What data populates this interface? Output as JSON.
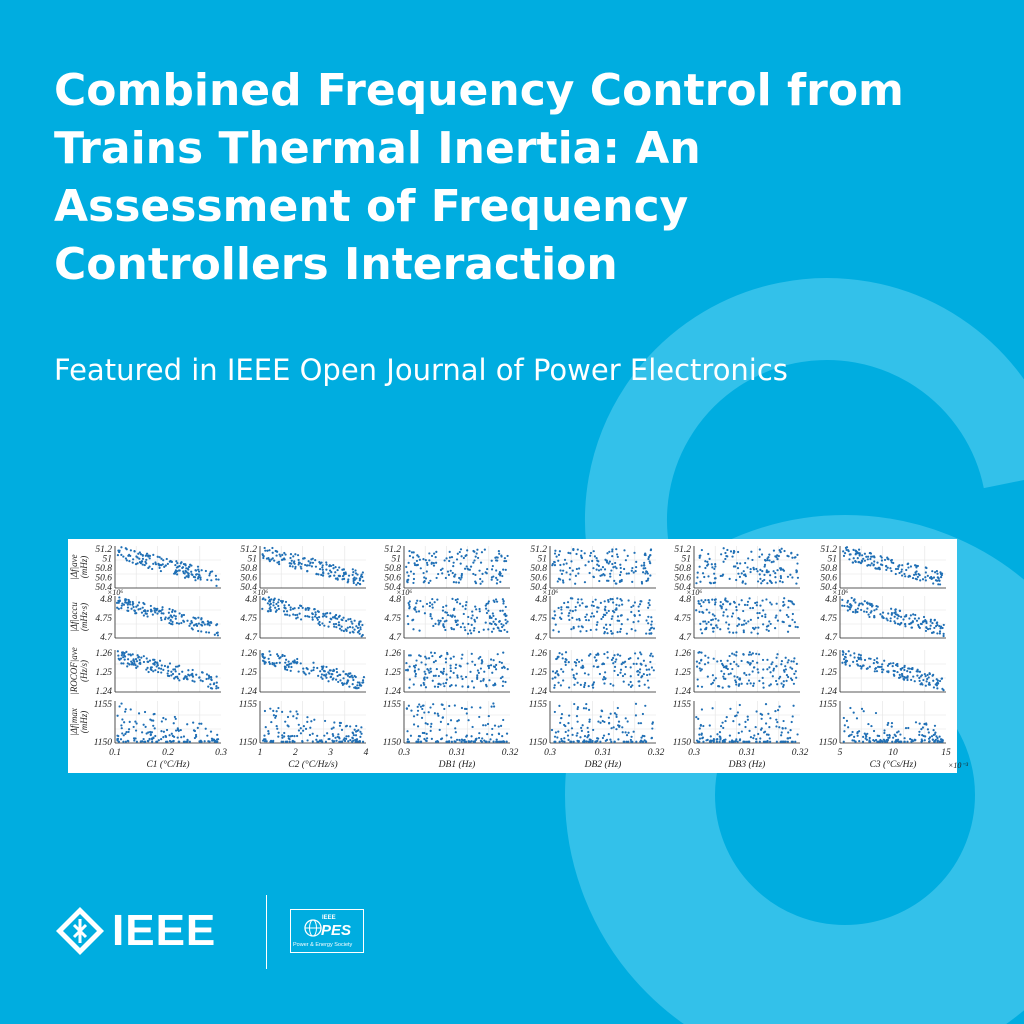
{
  "title_lines": [
    "Combined Frequency Control from",
    "Trains Thermal Inertia: An",
    "Assessment of Frequency",
    "Controllers Interaction"
  ],
  "subtitle": "Featured in IEEE Open Journal of Power Electronics",
  "colors": {
    "background": "#00ade0",
    "lock_watermark": "#33c1ea",
    "dots": "#1f6fb5"
  },
  "logos": {
    "ieee_wordmark": "IEEE",
    "pes_abbrev": "PES",
    "pes_ieee": "IEEE",
    "pes_society": "Power & Energy Society",
    "ieee_icon": "ieee-diamond-icon",
    "pes_icon": "pes-globe-icon"
  },
  "chart_data": {
    "type": "scatter",
    "rows": [
      {
        "ylabel": [
          "|Δf|ave",
          "(mHz)"
        ],
        "ticks": [
          "51.2",
          "51",
          "50.8",
          "50.6",
          "50.4"
        ],
        "multiplier": ""
      },
      {
        "ylabel": [
          "|Δf|accu",
          "(mHz·s)"
        ],
        "ticks": [
          "4.8",
          "4.75",
          "4.7"
        ],
        "multiplier": "×10⁶"
      },
      {
        "ylabel": [
          "|ROCOF|ave",
          "(Hz/s)"
        ],
        "ticks": [
          "1.26",
          "1.25",
          "1.24"
        ],
        "multiplier": ""
      },
      {
        "ylabel": [
          "|Δf|max",
          "(mHz)"
        ],
        "ticks": [
          "1155",
          "1150"
        ],
        "multiplier": ""
      }
    ],
    "columns": [
      {
        "xlabel": "C1 (°C/Hz)",
        "xticks": [
          "0.1",
          "0.2",
          "0.3"
        ],
        "trend": "decreasing",
        "xmult": ""
      },
      {
        "xlabel": "C2 (°C/Hz/s)",
        "xticks": [
          "1",
          "2",
          "3",
          "4"
        ],
        "trend": "decreasing",
        "xmult": ""
      },
      {
        "xlabel": "DB1 (Hz)",
        "xticks": [
          "0.3",
          "0.31",
          "0.32"
        ],
        "trend": "flat",
        "xmult": ""
      },
      {
        "xlabel": "DB2 (Hz)",
        "xticks": [
          "0.3",
          "0.31",
          "0.32"
        ],
        "trend": "flat",
        "xmult": ""
      },
      {
        "xlabel": "DB3 (Hz)",
        "xticks": [
          "0.3",
          "0.31",
          "0.32"
        ],
        "trend": "flat",
        "xmult": ""
      },
      {
        "xlabel": "C3 (°Cs/Hz)",
        "xticks": [
          "5",
          "10",
          "15"
        ],
        "trend": "decreasing",
        "xmult": "×10⁻³"
      }
    ],
    "grid": true,
    "legend": "none"
  }
}
